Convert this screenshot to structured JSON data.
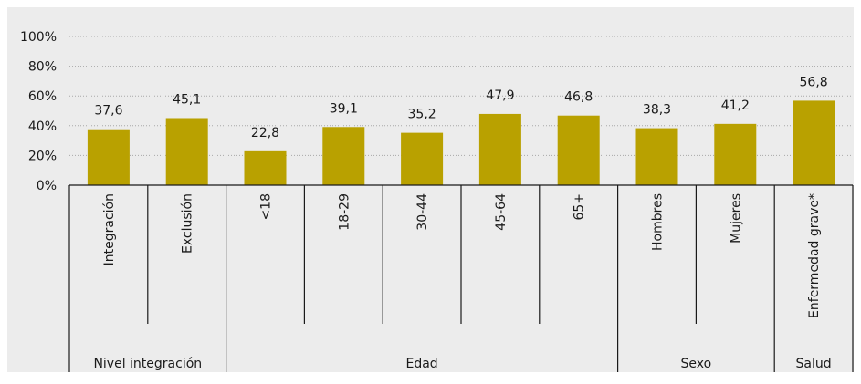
{
  "chart_data": {
    "type": "bar",
    "categories": [
      "Integración",
      "Exclusión",
      "<18",
      "18-29",
      "30-44",
      "45-64",
      "65+",
      "Hombres",
      "Mujeres",
      "Enfermedad grave*"
    ],
    "values": [
      37.6,
      45.1,
      22.8,
      39.1,
      35.2,
      47.9,
      46.8,
      38.3,
      41.2,
      56.8
    ],
    "value_labels": [
      "37,6",
      "45,1",
      "22,8",
      "39,1",
      "35,2",
      "47,9",
      "46,8",
      "38,3",
      "41,2",
      "56,8"
    ],
    "groups": [
      {
        "label": "Nivel integración",
        "start": 0,
        "end": 1
      },
      {
        "label": "Edad",
        "start": 2,
        "end": 6
      },
      {
        "label": "Sexo",
        "start": 7,
        "end": 8
      },
      {
        "label": "Salud",
        "start": 9,
        "end": 9
      }
    ],
    "title": "",
    "xlabel": "",
    "ylabel": "",
    "ylim": [
      0,
      100
    ],
    "yticks": [
      0,
      20,
      40,
      60,
      80,
      100
    ],
    "ytick_labels": [
      "0%",
      "20%",
      "40%",
      "60%",
      "80%",
      "100%"
    ],
    "grid": true,
    "legend": false,
    "colors": {
      "background": "#ececec",
      "bar": "#b9a100",
      "grid": "#a8a8a8",
      "axis": "#1a1a1a",
      "text": "#1a1a1a"
    }
  }
}
